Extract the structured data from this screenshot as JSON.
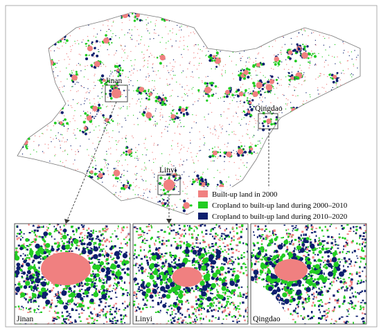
{
  "map": {
    "labels": [
      {
        "text": "Jinan"
      },
      {
        "text": "Qingdao"
      },
      {
        "text": "Linyi"
      }
    ],
    "legend": [
      {
        "text": "Built-up land in 2000",
        "color": "#f08080"
      },
      {
        "text": "Cropland to built-up land during 2000–2010",
        "color": "#22cc22"
      },
      {
        "text": "Cropland to built-up land during 2010–2020",
        "color": "#0d1f6e"
      }
    ],
    "insets": [
      {
        "label": "Jinan"
      },
      {
        "label": "Linyi"
      },
      {
        "label": "Qingdao"
      }
    ]
  }
}
